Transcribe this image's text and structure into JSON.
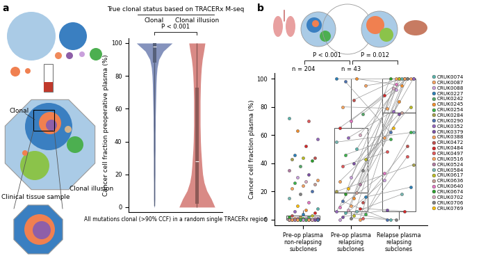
{
  "panel_labels": [
    "a",
    "b"
  ],
  "diagram": {
    "labels": [
      "Clonal",
      "Clinical tissue sample",
      "Clonal illusion"
    ]
  },
  "chart_data": [
    {
      "type": "violin",
      "title": "True clonal status based on TRACERx M-seq",
      "categories": [
        "Clonal",
        "Clonal illusion"
      ],
      "ylabel": "Cancer cell fraction preoperative plasma (%)",
      "xlabel": "All mutations clonal (>90% CCF) in a random single TRACERx region",
      "ylim": [
        -3,
        103
      ],
      "yticks": [
        0,
        20,
        40,
        60,
        80,
        100
      ],
      "tick_labels": "y",
      "annotations": [
        {
          "text": "P < 0.001",
          "between": [
            0,
            1
          ]
        }
      ],
      "density_y": [
        0,
        5,
        10,
        15,
        20,
        25,
        30,
        35,
        40,
        45,
        50,
        55,
        60,
        65,
        70,
        75,
        80,
        85,
        90,
        95,
        100
      ],
      "series": [
        {
          "name": "Clonal",
          "color": "#8593bd",
          "density": [
            0.01,
            0.03,
            0.03,
            0.03,
            0.04,
            0.04,
            0.04,
            0.05,
            0.05,
            0.05,
            0.06,
            0.06,
            0.07,
            0.08,
            0.09,
            0.1,
            0.12,
            0.16,
            0.25,
            0.5,
            1.0
          ],
          "box": {
            "q1": 88,
            "median": 98,
            "q3": 100,
            "whisker_low": 1,
            "whisker_high": 100
          }
        },
        {
          "name": "Clonal illusion",
          "color": "#d98a86",
          "density": [
            1.0,
            0.8,
            0.55,
            0.4,
            0.32,
            0.28,
            0.25,
            0.22,
            0.2,
            0.19,
            0.18,
            0.18,
            0.18,
            0.18,
            0.19,
            0.2,
            0.22,
            0.25,
            0.3,
            0.38,
            0.45
          ],
          "box": {
            "q1": 2,
            "median": 28,
            "q3": 73,
            "whisker_low": 0,
            "whisker_high": 100
          }
        }
      ]
    },
    {
      "type": "box_strip",
      "categories": [
        "Pre-op plasma\nnon-relapsing\nsubclones",
        "Pre-op plasma\nrelapsing\nsubclones",
        "Relapse plasma\nrelapsing\nsubclones"
      ],
      "ylabel": "Cancer cell fraction plasma (%)",
      "ylim": [
        -4,
        104
      ],
      "yticks": [
        0,
        20,
        40,
        60,
        80,
        100
      ],
      "annotations": [
        {
          "text": "P < 0.001",
          "between": [
            0,
            1
          ]
        },
        {
          "text": "P = 0.012",
          "between": [
            1,
            2
          ]
        }
      ],
      "counts": [
        {
          "text": "n = 204",
          "category": 0
        },
        {
          "text": "n = 43",
          "category": 1
        }
      ],
      "boxes": [
        {
          "q1": 0,
          "median": 1,
          "q3": 3,
          "whisker_low": 0,
          "whisker_high": 7
        },
        {
          "q1": 6,
          "median": 19,
          "q3": 65,
          "whisker_low": 0,
          "whisker_high": 100
        },
        {
          "q1": 6,
          "median": 76,
          "q3": 100,
          "whisker_low": 0,
          "whisker_high": 100
        }
      ],
      "non_relapsing_points": [
        [
          72,
          0
        ],
        [
          70,
          14
        ],
        [
          63,
          5
        ],
        [
          57,
          9
        ],
        [
          52,
          13
        ],
        [
          46,
          3
        ],
        [
          44,
          12
        ],
        [
          44,
          18
        ],
        [
          43,
          7
        ],
        [
          42,
          21
        ],
        [
          38,
          4
        ],
        [
          35,
          16
        ],
        [
          32,
          10
        ],
        [
          30,
          2
        ],
        [
          28,
          11
        ],
        [
          27,
          22
        ],
        [
          26,
          6
        ],
        [
          25,
          19
        ],
        [
          24,
          1
        ],
        [
          22,
          15
        ],
        [
          20,
          8
        ],
        [
          18,
          23
        ],
        [
          15,
          17
        ],
        [
          12,
          20
        ],
        [
          10,
          24
        ],
        [
          8,
          0
        ],
        [
          7,
          5
        ],
        [
          6,
          9
        ],
        [
          5,
          13
        ],
        [
          4,
          3
        ],
        [
          3,
          12
        ],
        [
          3,
          18
        ],
        [
          2,
          7
        ],
        [
          2,
          21
        ],
        [
          2,
          4
        ],
        [
          1,
          16
        ],
        [
          1,
          10
        ],
        [
          1,
          2
        ],
        [
          1,
          11
        ],
        [
          1,
          22
        ],
        [
          1,
          6
        ],
        [
          0,
          19
        ],
        [
          0,
          1
        ],
        [
          0,
          15
        ],
        [
          0,
          8
        ],
        [
          0,
          23
        ],
        [
          0,
          17
        ],
        [
          0,
          20
        ],
        [
          0,
          24
        ],
        [
          0,
          0
        ],
        [
          0,
          14
        ],
        [
          0,
          5
        ],
        [
          0,
          9
        ],
        [
          0,
          13
        ],
        [
          0,
          3
        ],
        [
          0,
          12
        ],
        [
          0,
          18
        ],
        [
          0,
          7
        ],
        [
          0,
          21
        ],
        [
          0,
          4
        ],
        [
          0,
          16
        ],
        [
          0,
          10
        ],
        [
          0,
          2
        ],
        [
          0,
          11
        ],
        [
          0,
          22
        ],
        [
          0,
          6
        ],
        [
          0,
          19
        ],
        [
          0,
          1
        ],
        [
          0,
          15
        ],
        [
          0,
          8
        ]
      ],
      "paired_points": [
        [
          100,
          100,
          3
        ],
        [
          100,
          95,
          5
        ],
        [
          98,
          62,
          8
        ],
        [
          95,
          100,
          1
        ],
        [
          85,
          100,
          12
        ],
        [
          80,
          79,
          15
        ],
        [
          75,
          100,
          4
        ],
        [
          70,
          96,
          20
        ],
        [
          65,
          88,
          13
        ],
        [
          60,
          100,
          22
        ],
        [
          58,
          77,
          9
        ],
        [
          55,
          62,
          17
        ],
        [
          50,
          100,
          0
        ],
        [
          46,
          57,
          6
        ],
        [
          43,
          80,
          18
        ],
        [
          40,
          75,
          10
        ],
        [
          38,
          48,
          14
        ],
        [
          35,
          100,
          23
        ],
        [
          30,
          92,
          2
        ],
        [
          27,
          58,
          11
        ],
        [
          25,
          100,
          16
        ],
        [
          22,
          65,
          24
        ],
        [
          20,
          39,
          7
        ],
        [
          19,
          76,
          19
        ],
        [
          18,
          100,
          21
        ],
        [
          16,
          23,
          3
        ],
        [
          15,
          84,
          5
        ],
        [
          13,
          0,
          8
        ],
        [
          12,
          52,
          12
        ],
        [
          10,
          100,
          15
        ],
        [
          9,
          33,
          20
        ],
        [
          8,
          6,
          13
        ],
        [
          7,
          93,
          22
        ],
        [
          6,
          100,
          9
        ],
        [
          6,
          18,
          17
        ],
        [
          5,
          0,
          0
        ],
        [
          4,
          62,
          6
        ],
        [
          3,
          100,
          18
        ],
        [
          2,
          7,
          10
        ],
        [
          1,
          45,
          14
        ],
        [
          1,
          0,
          23
        ],
        [
          0,
          28,
          2
        ],
        [
          0,
          100,
          11
        ]
      ],
      "legend": "upper left",
      "patients": [
        {
          "name": "CRUK0074",
          "color": "#5ab4ac"
        },
        {
          "name": "CRUK0087",
          "color": "#f4a261"
        },
        {
          "name": "CRUK0088",
          "color": "#c9a0dc"
        },
        {
          "name": "CRUK0227",
          "color": "#2a7fb8"
        },
        {
          "name": "CRUK0242",
          "color": "#55a868"
        },
        {
          "name": "CRUK0245",
          "color": "#f28e2b"
        },
        {
          "name": "CRUK0254",
          "color": "#3cb44b"
        },
        {
          "name": "CRUK0284",
          "color": "#a6a04b"
        },
        {
          "name": "CRUK0290",
          "color": "#4c72b0"
        },
        {
          "name": "CRUK0352",
          "color": "#9467bd"
        },
        {
          "name": "CRUK0379",
          "color": "#7b4fa3"
        },
        {
          "name": "CRUK0388",
          "color": "#f5a05a"
        },
        {
          "name": "CRUK0472",
          "color": "#c0504d"
        },
        {
          "name": "CRUK0484",
          "color": "#d62728"
        },
        {
          "name": "CRUK0497",
          "color": "#e15759"
        },
        {
          "name": "CRUK0516",
          "color": "#f7a35c"
        },
        {
          "name": "CRUK0524",
          "color": "#b07aa1"
        },
        {
          "name": "CRUK0584",
          "color": "#76b7b2"
        },
        {
          "name": "CRUK0617",
          "color": "#bcbd22"
        },
        {
          "name": "CRUK0636",
          "color": "#c49c94"
        },
        {
          "name": "CRUK0640",
          "color": "#e377c2"
        },
        {
          "name": "CRUK0674",
          "color": "#2ca02c"
        },
        {
          "name": "CRUK0702",
          "color": "#d7a8c0"
        },
        {
          "name": "CRUK0706",
          "color": "#7f7f7f"
        },
        {
          "name": "CRUK0769",
          "color": "#ffbf00"
        }
      ]
    }
  ]
}
